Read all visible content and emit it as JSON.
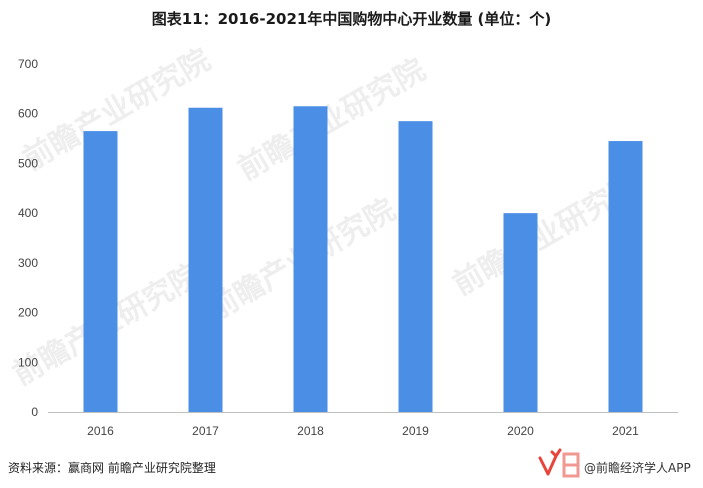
{
  "chart_data": {
    "type": "bar",
    "title": "图表11：2016-2021年中国购物中心开业数量 (单位：个)",
    "categories": [
      "2016",
      "2017",
      "2018",
      "2019",
      "2020",
      "2021"
    ],
    "values": [
      565,
      612,
      615,
      585,
      400,
      545
    ],
    "ylim": [
      0,
      700
    ],
    "yticks": [
      0,
      100,
      200,
      300,
      400,
      500,
      600,
      700
    ],
    "grid": false,
    "bar_color": "#4a8ee6"
  },
  "footer": {
    "source": "资料来源：赢商网 前瞻产业研究院整理",
    "brand": "@前瞻经济学人APP"
  },
  "watermark": "前瞻产业研究院",
  "colors": {
    "bar": "#4a8ee6",
    "axis": "#bfbfbf",
    "brand_red": "#e8443a"
  }
}
